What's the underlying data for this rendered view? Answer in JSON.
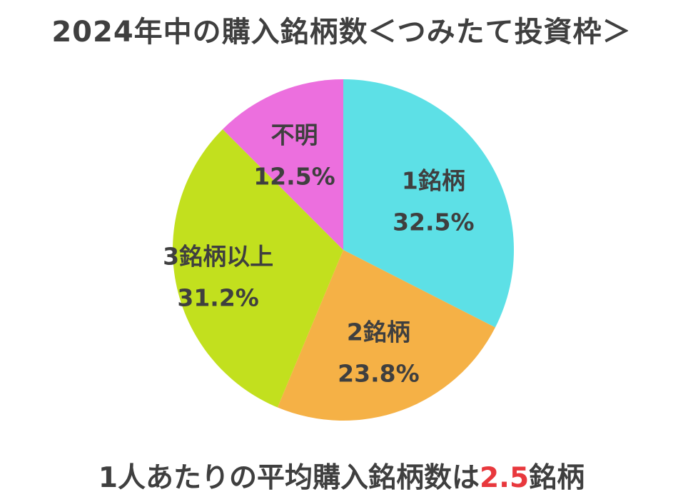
{
  "title": "2024年中の購入銘柄数＜つみたて投資枠＞",
  "chart_data": {
    "type": "pie",
    "slices": [
      {
        "label": "1銘柄",
        "value": 32.5,
        "value_text": "32.5%",
        "color": "#5de0e6"
      },
      {
        "label": "2銘柄",
        "value": 23.8,
        "value_text": "23.8%",
        "color": "#f5b146"
      },
      {
        "label": "3銘柄以上",
        "value": 31.2,
        "value_text": "31.2%",
        "color": "#c2e01e"
      },
      {
        "label": "不明",
        "value": 12.5,
        "value_text": "12.5%",
        "color": "#ec6fde"
      }
    ]
  },
  "footer": {
    "prefix": "1人あたりの平均購入銘柄数は",
    "value": "2.5",
    "suffix": "銘柄",
    "value_color": "#e8383d"
  }
}
